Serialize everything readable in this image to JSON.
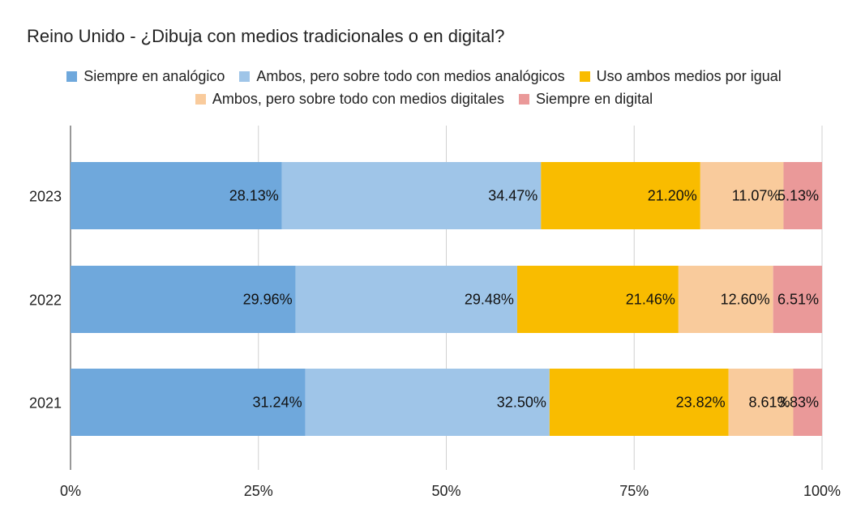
{
  "chart_data": {
    "type": "bar",
    "orientation": "horizontal",
    "stacked": "percent",
    "title": "Reino Unido - ¿Dibuja con medios tradicionales o en digital?",
    "categories": [
      "2023",
      "2022",
      "2021"
    ],
    "series": [
      {
        "name": "Siempre en analógico",
        "color": "#6fa8dc",
        "values": [
          28.13,
          29.96,
          31.24
        ],
        "labels": [
          "28.13%",
          "29.96%",
          "31.24%"
        ]
      },
      {
        "name": "Ambos, pero sobre todo con medios analógicos",
        "color": "#9fc5e8",
        "values": [
          34.47,
          29.48,
          32.5
        ],
        "labels": [
          "34.47%",
          "29.48%",
          "32.50%"
        ]
      },
      {
        "name": "Uso ambos medios por igual",
        "color": "#f9bc00",
        "values": [
          21.2,
          21.46,
          23.82
        ],
        "labels": [
          "21.20%",
          "21.46%",
          "23.82%"
        ]
      },
      {
        "name": "Ambos, pero sobre todo con medios digitales",
        "color": "#f9cb9c",
        "values": [
          11.07,
          12.6,
          8.61
        ],
        "labels": [
          "11.07%",
          "12.60%",
          "8.61%"
        ]
      },
      {
        "name": "Siempre en digital",
        "color": "#ea9999",
        "values": [
          5.13,
          6.51,
          3.83
        ],
        "labels": [
          "5.13%",
          "6.51%",
          "3.83%"
        ]
      }
    ],
    "x_ticks": [
      "0%",
      "25%",
      "50%",
      "75%",
      "100%"
    ],
    "xlim": [
      0,
      100
    ],
    "grid": true,
    "legend_position": "top"
  }
}
